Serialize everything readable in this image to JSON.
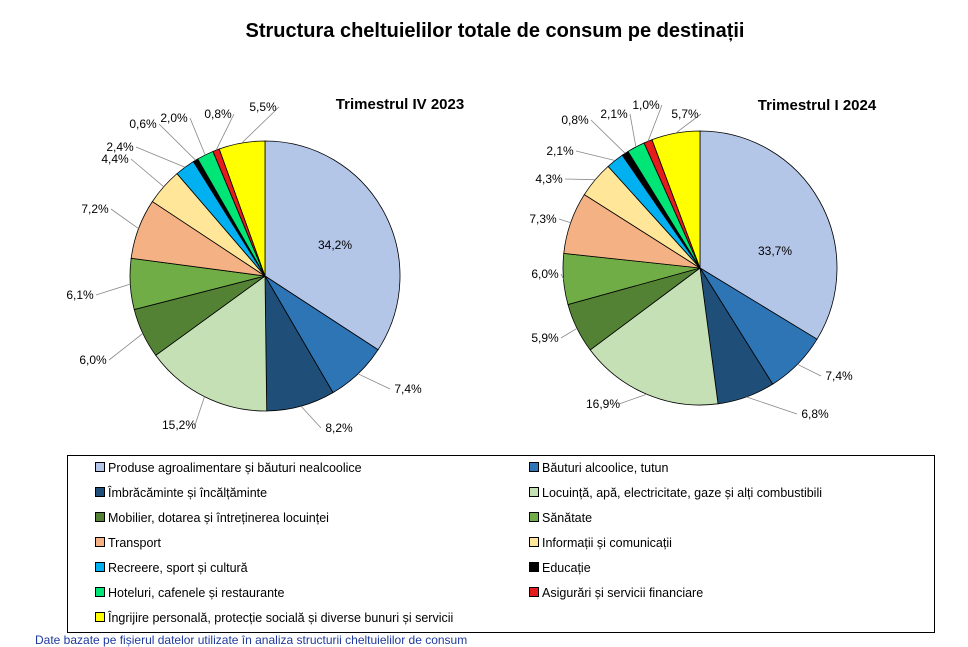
{
  "title": "Structura cheltuielilor totale de consum pe destinații",
  "chart_data": [
    {
      "type": "pie",
      "title": "Trimestrul  IV 2023",
      "categories": [
        "Produse agroalimentare și băuturi nealcoolice",
        "Băuturi alcoolice, tutun",
        "Îmbrăcăminte și încălțăminte",
        "Locuință, apă, electricitate, gaze și alți combustibili",
        "Mobilier,  dotarea și întreținerea locuinței",
        "Sănătate",
        "Transport",
        "Informații și comunicații",
        "Recreere, sport și cultură",
        "Educație",
        "Hoteluri,  cafenele și restaurante",
        "Asigurări și servicii financiare",
        "Îngrijire personală, protecție socială și diverse bunuri și servicii"
      ],
      "values": [
        34.2,
        7.4,
        8.2,
        15.2,
        6.0,
        6.1,
        7.2,
        4.4,
        2.4,
        0.6,
        2.0,
        0.8,
        5.5
      ],
      "labels": [
        "34,2%",
        "7,4%",
        "8,2%",
        "15,2%",
        "6,0%",
        "6,1%",
        "7,2%",
        "4,4%",
        "2,4%",
        "0,6%",
        "2,0%",
        "0,8%",
        "5,5%"
      ]
    },
    {
      "type": "pie",
      "title": "Trimestrul  I 2024",
      "categories": [
        "Produse agroalimentare și băuturi nealcoolice",
        "Băuturi alcoolice, tutun",
        "Îmbrăcăminte și încălțăminte",
        "Locuință, apă, electricitate, gaze și alți combustibili",
        "Mobilier,  dotarea și întreținerea locuinței",
        "Sănătate",
        "Transport",
        "Informații și comunicații",
        "Recreere, sport și cultură",
        "Educație",
        "Hoteluri,  cafenele și restaurante",
        "Asigurări și servicii financiare",
        "Îngrijire personală, protecție socială și diverse bunuri și servicii"
      ],
      "values": [
        33.7,
        7.4,
        6.8,
        16.9,
        5.9,
        6.0,
        7.3,
        4.3,
        2.1,
        0.8,
        2.1,
        1.0,
        5.7
      ],
      "labels": [
        "33,7%",
        "7,4%",
        "6,8%",
        "16,9%",
        "5,9%",
        "6,0%",
        "7,3%",
        "4,3%",
        "2,1%",
        "0,8%",
        "2,1%",
        "1,0%",
        "5,7%"
      ]
    }
  ],
  "colors": [
    "#b4c6e7",
    "#2e75b6",
    "#1f4e79",
    "#c5e0b4",
    "#548235",
    "#70ad47",
    "#f4b183",
    "#ffe699",
    "#00b0f0",
    "#000000",
    "#00e676",
    "#e51c1c",
    "#ffff00"
  ],
  "legend": [
    "Produse agroalimentare și băuturi nealcoolice",
    "Băuturi alcoolice, tutun",
    "Îmbrăcăminte și încălțăminte",
    "Locuință, apă, electricitate, gaze și alți combustibili",
    "Mobilier,  dotarea și întreținerea locuinței",
    "Sănătate",
    "Transport",
    "Informații și comunicații",
    "Recreere, sport și cultură",
    "Educație",
    "Hoteluri,  cafenele și restaurante",
    "Asigurări și servicii financiare",
    "Îngrijire personală, protecție socială și diverse bunuri și servicii"
  ],
  "footnote": "Date bazate pe fișierul datelor utilizate în analiza structurii cheltuielilor de consum"
}
